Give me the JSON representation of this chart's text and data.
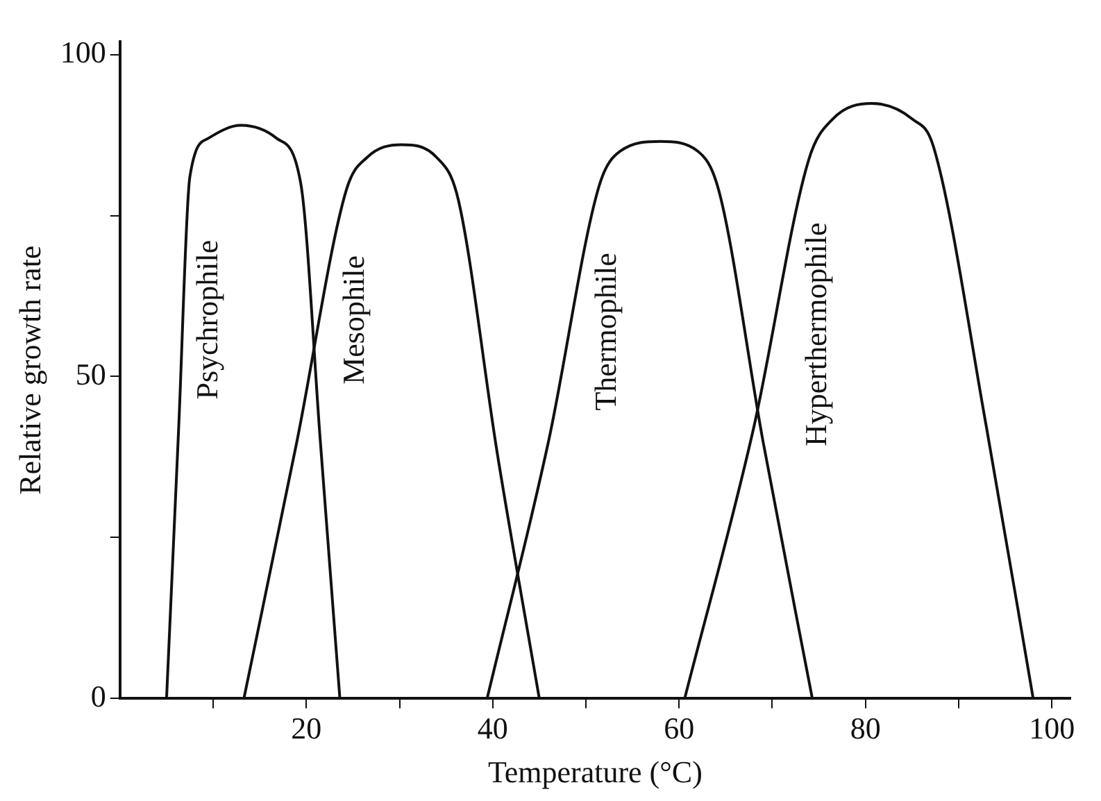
{
  "chart_data": {
    "type": "line",
    "xlabel": "Temperature (°C)",
    "ylabel": "Relative growth rate",
    "xlim": [
      0,
      102
    ],
    "ylim": [
      0,
      102
    ],
    "xticks": [
      {
        "value": 10,
        "label": null
      },
      20,
      {
        "value": 30,
        "label": null
      },
      40,
      {
        "value": 50,
        "label": null
      },
      60,
      {
        "value": 70,
        "label": null
      },
      80,
      {
        "value": 90,
        "label": null
      },
      100
    ],
    "yticks": [
      0,
      {
        "value": 25,
        "label": null
      },
      50,
      {
        "value": 75,
        "label": null
      },
      100
    ],
    "grid": false,
    "legend": false,
    "marker": "none",
    "line_style": "solid",
    "series": [
      {
        "name": "Psychrophile",
        "color": "#111111",
        "x": [
          5,
          6.3,
          7.5,
          9.5,
          13,
          16.8,
          19.4,
          21.5,
          23.6
        ],
        "values": [
          0,
          42,
          81,
          87,
          89,
          87,
          80,
          40,
          0
        ]
      },
      {
        "name": "Mesophile",
        "color": "#111111",
        "x": [
          13.3,
          19,
          24.3,
          26.5,
          30.2,
          34,
          36.3,
          40.5,
          45
        ],
        "values": [
          0,
          40,
          79,
          84,
          86,
          84,
          77.5,
          38,
          0
        ]
      },
      {
        "name": "Thermophile",
        "color": "#111111",
        "x": [
          39.4,
          46,
          51.4,
          53.7,
          58,
          62,
          64.3,
          69,
          74.3
        ],
        "values": [
          0,
          40,
          79.5,
          85,
          86.5,
          85,
          78.7,
          40,
          0
        ]
      },
      {
        "name": "Hyperthermophile",
        "color": "#111111",
        "x": [
          60.6,
          68,
          73.9,
          76.5,
          80.7,
          85,
          87.3,
          93,
          98
        ],
        "values": [
          0,
          42,
          83.6,
          90,
          92.4,
          90,
          85.7,
          42,
          0
        ]
      }
    ]
  }
}
